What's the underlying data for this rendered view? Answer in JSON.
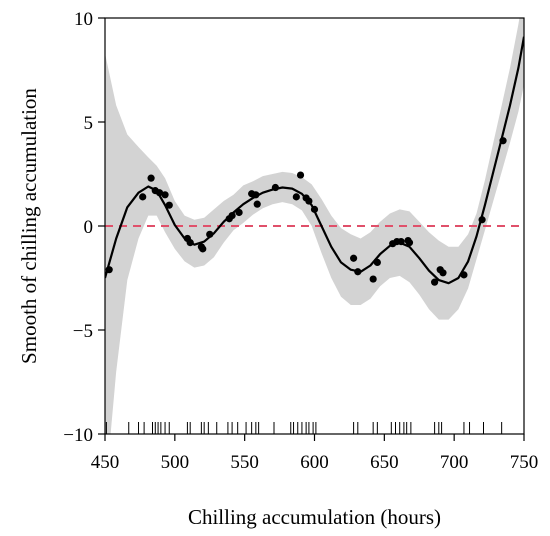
{
  "chart_data": {
    "type": "line",
    "title": "",
    "xlabel": "Chilling accumulation (hours)",
    "ylabel": "Smooth of chilling accumulation",
    "xlim": [
      450,
      750
    ],
    "ylim": [
      -10,
      10
    ],
    "xticks": [
      450,
      500,
      550,
      600,
      650,
      700,
      750
    ],
    "yticks": [
      -10,
      -5,
      0,
      5,
      10
    ],
    "xtick_labels": [
      "450",
      "500",
      "550",
      "600",
      "650",
      "700",
      "750"
    ],
    "ytick_labels": [
      "−10",
      "−5",
      "0",
      "5",
      "10"
    ],
    "grid": false,
    "legend": "none",
    "reference_line": {
      "y": 0,
      "color": "#e0506a",
      "style": "dashed"
    },
    "band_color": "#d3d3d3",
    "line_color": "#000000",
    "smooth": {
      "x": [
        450,
        458,
        466,
        474,
        481,
        487,
        493,
        500,
        507,
        514,
        521,
        528,
        535,
        542,
        549,
        556,
        563,
        570,
        577,
        584,
        591,
        598,
        605,
        612,
        619,
        626,
        633,
        640,
        647,
        654,
        661,
        668,
        675,
        682,
        689,
        696,
        703,
        710,
        716,
        722,
        728,
        734,
        740,
        746,
        750
      ],
      "y": [
        -2.5,
        -0.6,
        0.9,
        1.6,
        1.9,
        1.7,
        1.0,
        0.05,
        -0.6,
        -0.9,
        -0.75,
        -0.35,
        0.2,
        0.65,
        1.05,
        1.35,
        1.6,
        1.75,
        1.85,
        1.8,
        1.55,
        1.0,
        0.0,
        -1.0,
        -1.75,
        -2.1,
        -2.2,
        -1.9,
        -1.35,
        -0.95,
        -0.8,
        -1.0,
        -1.55,
        -2.15,
        -2.6,
        -2.75,
        -2.5,
        -1.7,
        -0.5,
        1.0,
        2.6,
        4.2,
        5.8,
        7.6,
        9.1
      ],
      "lower": [
        -13.0,
        -7.0,
        -2.6,
        -0.6,
        0.5,
        0.5,
        -0.3,
        -1.1,
        -1.7,
        -2.0,
        -1.9,
        -1.5,
        -0.8,
        -0.2,
        0.15,
        0.55,
        0.85,
        1.05,
        1.15,
        1.05,
        0.75,
        0.0,
        -1.3,
        -2.5,
        -3.4,
        -3.8,
        -3.8,
        -3.5,
        -2.9,
        -2.5,
        -2.4,
        -2.7,
        -3.3,
        -4.0,
        -4.5,
        -4.5,
        -4.0,
        -3.0,
        -1.6,
        -0.2,
        1.2,
        2.6,
        4.0,
        5.5,
        6.8
      ],
      "upper": [
        8.3,
        5.8,
        4.4,
        3.8,
        3.3,
        2.9,
        2.3,
        1.2,
        0.5,
        0.3,
        0.4,
        0.8,
        1.2,
        1.5,
        1.95,
        2.15,
        2.4,
        2.5,
        2.6,
        2.55,
        2.35,
        2.0,
        1.3,
        0.5,
        -0.1,
        -0.4,
        -0.6,
        -0.3,
        0.2,
        0.6,
        0.8,
        0.7,
        0.2,
        -0.3,
        -0.7,
        -1.0,
        -1.0,
        -0.4,
        0.6,
        2.2,
        4.0,
        5.8,
        7.6,
        9.7,
        11.4
      ]
    },
    "points": {
      "x": [
        453,
        477,
        483,
        486,
        489,
        493,
        496,
        509,
        511,
        519,
        520,
        525,
        539,
        541,
        546,
        555,
        558,
        559,
        572,
        587,
        590,
        594,
        596,
        600,
        628,
        631,
        642,
        645,
        656,
        659,
        662,
        667,
        668,
        686,
        690,
        692,
        707,
        720,
        735
      ],
      "y": [
        -2.1,
        1.4,
        2.3,
        1.7,
        1.6,
        1.5,
        1.0,
        -0.6,
        -0.8,
        -1.0,
        -1.1,
        -0.4,
        0.35,
        0.5,
        0.65,
        1.55,
        1.5,
        1.05,
        1.85,
        1.4,
        2.45,
        1.35,
        1.2,
        0.8,
        -1.55,
        -2.2,
        -2.55,
        -1.75,
        -0.85,
        -0.75,
        -0.75,
        -0.7,
        -0.8,
        -2.7,
        -2.1,
        -2.25,
        -2.35,
        0.3,
        4.1
      ]
    },
    "rug_x": [
      451,
      467,
      474,
      478,
      484,
      486,
      488,
      490,
      493,
      496,
      509,
      511,
      519,
      521,
      524,
      530,
      538,
      541,
      545,
      551,
      555,
      558,
      560,
      571,
      583,
      585,
      588,
      591,
      594,
      596,
      599,
      601,
      628,
      631,
      642,
      645,
      655,
      658,
      661,
      664,
      666,
      669,
      686,
      689,
      691,
      707,
      711,
      721,
      734
    ]
  }
}
